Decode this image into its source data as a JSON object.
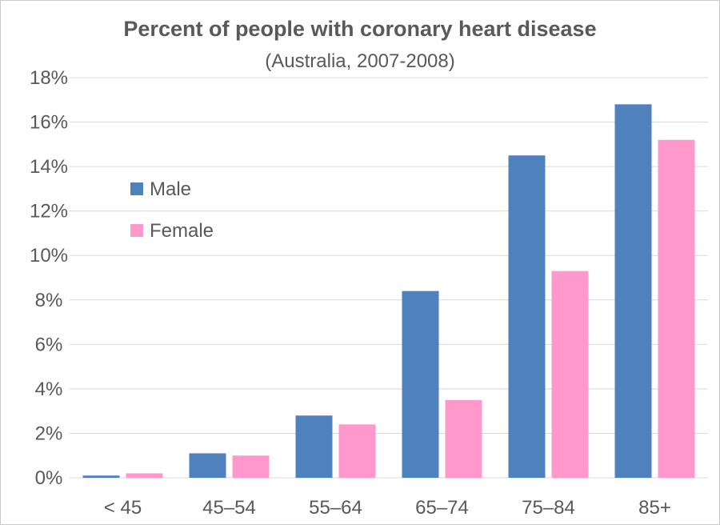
{
  "chart_data": {
    "type": "bar",
    "title": "Percent of people with coronary heart disease",
    "subtitle": "(Australia, 2007-2008)",
    "xlabel": "",
    "ylabel": "",
    "categories": [
      "< 45",
      "45–54",
      "55–64",
      "65–74",
      "75–84",
      "85+"
    ],
    "series": [
      {
        "name": "Male",
        "color": "#4f81bd",
        "values": [
          0.1,
          1.1,
          2.8,
          8.4,
          14.5,
          16.8
        ]
      },
      {
        "name": "Female",
        "color": "#ff99cc",
        "values": [
          0.2,
          1.0,
          2.4,
          3.5,
          9.3,
          15.2
        ]
      }
    ],
    "ylim": [
      0,
      18
    ],
    "y_ticks": [
      "0%",
      "2%",
      "4%",
      "6%",
      "8%",
      "10%",
      "12%",
      "14%",
      "16%",
      "18%"
    ],
    "y_unit": "%",
    "grid": true,
    "legend_position": "upper-left inside plot"
  }
}
